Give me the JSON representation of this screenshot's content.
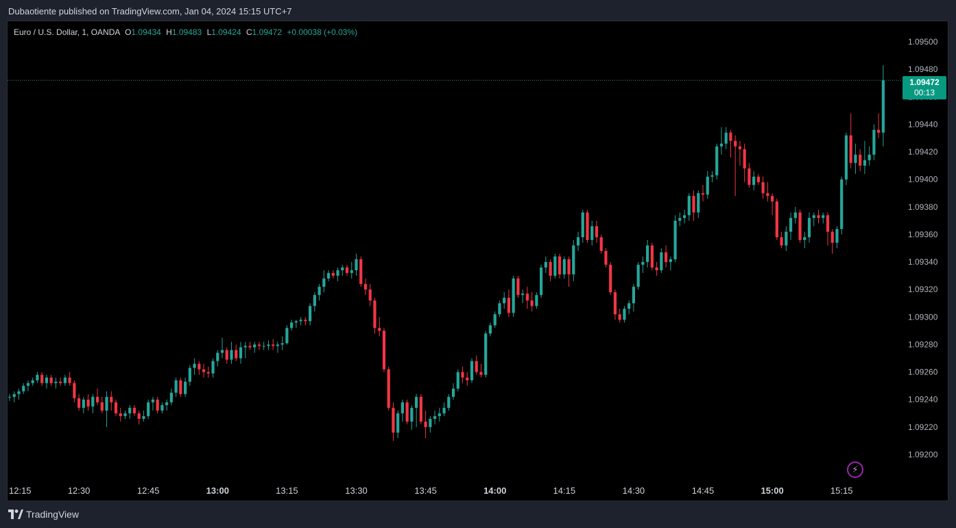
{
  "header": {
    "publish_text": "Dubaotiente published on TradingView.com, Jan 04, 2024 15:15 UTC+7"
  },
  "legend": {
    "symbol": "Euro / U.S. Dollar, 1, OANDA",
    "o_label": "O",
    "o_value": "1.09434",
    "h_label": "H",
    "h_value": "1.09483",
    "l_label": "L",
    "l_value": "1.09424",
    "c_label": "C",
    "c_value": "1.09472",
    "change": "+0.00038 (+0.03%)"
  },
  "last_price": {
    "price": "1.09472",
    "countdown": "00:13"
  },
  "footer": {
    "brand": "TradingView"
  },
  "colors": {
    "up": "#26a69a",
    "down": "#f23645",
    "badge": "#089981",
    "background": "#000000",
    "frame": "#1e222d"
  },
  "chart_data": {
    "type": "candlestick",
    "ylim": [
      1.0919,
      1.0951
    ],
    "y_ticks": [
      "1.09500",
      "1.09480",
      "1.09460",
      "1.09440",
      "1.09420",
      "1.09400",
      "1.09380",
      "1.09360",
      "1.09340",
      "1.09320",
      "1.09300",
      "1.09280",
      "1.09260",
      "1.09240",
      "1.09220",
      "1.09200"
    ],
    "x_ticks": [
      {
        "label": "12:15",
        "bold": false
      },
      {
        "label": "12:30",
        "bold": false
      },
      {
        "label": "12:45",
        "bold": false
      },
      {
        "label": "13:00",
        "bold": true
      },
      {
        "label": "13:15",
        "bold": false
      },
      {
        "label": "13:30",
        "bold": false
      },
      {
        "label": "13:45",
        "bold": false
      },
      {
        "label": "14:00",
        "bold": true
      },
      {
        "label": "14:15",
        "bold": false
      },
      {
        "label": "14:30",
        "bold": false
      },
      {
        "label": "14:45",
        "bold": false
      },
      {
        "label": "15:00",
        "bold": true
      },
      {
        "label": "15:15",
        "bold": false
      }
    ],
    "start_time": "12:15",
    "interval_minutes": 1,
    "candles": [
      [
        1.09242,
        1.09244,
        1.09239,
        1.09242
      ],
      [
        1.09242,
        1.09246,
        1.09238,
        1.09244
      ],
      [
        1.09244,
        1.09248,
        1.0924,
        1.09246
      ],
      [
        1.09246,
        1.09252,
        1.09244,
        1.0925
      ],
      [
        1.0925,
        1.09254,
        1.09246,
        1.09252
      ],
      [
        1.09252,
        1.09256,
        1.0925,
        1.09254
      ],
      [
        1.09254,
        1.0926,
        1.09252,
        1.09258
      ],
      [
        1.09258,
        1.0926,
        1.0925,
        1.09252
      ],
      [
        1.09252,
        1.09258,
        1.09248,
        1.09256
      ],
      [
        1.09256,
        1.09258,
        1.0925,
        1.09252
      ],
      [
        1.09252,
        1.09256,
        1.09248,
        1.09253
      ],
      [
        1.09253,
        1.09256,
        1.0925,
        1.09252
      ],
      [
        1.09252,
        1.09258,
        1.0925,
        1.09256
      ],
      [
        1.09256,
        1.0926,
        1.0925,
        1.09252
      ],
      [
        1.09252,
        1.09254,
        1.09238,
        1.09241
      ],
      [
        1.09241,
        1.09244,
        1.09232,
        1.09234
      ],
      [
        1.09234,
        1.09242,
        1.0923,
        1.0924
      ],
      [
        1.0924,
        1.09244,
        1.09232,
        1.09235
      ],
      [
        1.09235,
        1.09244,
        1.0923,
        1.09242
      ],
      [
        1.09242,
        1.09248,
        1.09236,
        1.09238
      ],
      [
        1.09238,
        1.09242,
        1.0923,
        1.09232
      ],
      [
        1.09232,
        1.09246,
        1.0922,
        1.09242
      ],
      [
        1.09242,
        1.09246,
        1.09232,
        1.09238
      ],
      [
        1.09238,
        1.0924,
        1.09228,
        1.0923
      ],
      [
        1.0923,
        1.09234,
        1.09224,
        1.09228
      ],
      [
        1.09228,
        1.09232,
        1.09226,
        1.0923
      ],
      [
        1.0923,
        1.09236,
        1.09226,
        1.09234
      ],
      [
        1.09234,
        1.09236,
        1.09228,
        1.0923
      ],
      [
        1.0923,
        1.09232,
        1.09222,
        1.09226
      ],
      [
        1.09226,
        1.09232,
        1.09224,
        1.09228
      ],
      [
        1.09228,
        1.0924,
        1.09226,
        1.09238
      ],
      [
        1.09238,
        1.09242,
        1.09232,
        1.0924
      ],
      [
        1.0924,
        1.09242,
        1.0923,
        1.09232
      ],
      [
        1.09232,
        1.09238,
        1.0923,
        1.09236
      ],
      [
        1.09236,
        1.0924,
        1.09232,
        1.09238
      ],
      [
        1.09238,
        1.09248,
        1.09236,
        1.09245
      ],
      [
        1.09245,
        1.09256,
        1.09242,
        1.09254
      ],
      [
        1.09254,
        1.09256,
        1.09242,
        1.09244
      ],
      [
        1.09244,
        1.09256,
        1.09242,
        1.09253
      ],
      [
        1.09253,
        1.09265,
        1.0925,
        1.09263
      ],
      [
        1.09263,
        1.0927,
        1.09258,
        1.09266
      ],
      [
        1.09266,
        1.09268,
        1.09258,
        1.09262
      ],
      [
        1.09262,
        1.09266,
        1.09256,
        1.0926
      ],
      [
        1.0926,
        1.09264,
        1.09256,
        1.09259
      ],
      [
        1.09259,
        1.0927,
        1.09256,
        1.09268
      ],
      [
        1.09268,
        1.09276,
        1.09264,
        1.09274
      ],
      [
        1.09274,
        1.09285,
        1.0927,
        1.09276
      ],
      [
        1.09276,
        1.09278,
        1.09266,
        1.09269
      ],
      [
        1.09269,
        1.09282,
        1.09266,
        1.09276
      ],
      [
        1.09276,
        1.0928,
        1.09268,
        1.0927
      ],
      [
        1.0927,
        1.09282,
        1.09266,
        1.09278
      ],
      [
        1.09278,
        1.09282,
        1.0927,
        1.09279
      ],
      [
        1.09279,
        1.09282,
        1.09276,
        1.09278
      ],
      [
        1.09278,
        1.09282,
        1.09274,
        1.0928
      ],
      [
        1.0928,
        1.09282,
        1.09276,
        1.09279
      ],
      [
        1.09279,
        1.09282,
        1.09276,
        1.09279
      ],
      [
        1.09279,
        1.09283,
        1.09276,
        1.0928
      ],
      [
        1.0928,
        1.09284,
        1.09276,
        1.09279
      ],
      [
        1.09279,
        1.09282,
        1.09274,
        1.0928
      ],
      [
        1.0928,
        1.09286,
        1.09276,
        1.09281
      ],
      [
        1.09281,
        1.09294,
        1.0928,
        1.09292
      ],
      [
        1.09292,
        1.09298,
        1.0929,
        1.09296
      ],
      [
        1.09296,
        1.09298,
        1.09292,
        1.09297
      ],
      [
        1.09297,
        1.093,
        1.09294,
        1.09298
      ],
      [
        1.09298,
        1.093,
        1.09294,
        1.09297
      ],
      [
        1.09297,
        1.0931,
        1.09294,
        1.09308
      ],
      [
        1.09308,
        1.09318,
        1.09304,
        1.09316
      ],
      [
        1.09316,
        1.09324,
        1.09312,
        1.09322
      ],
      [
        1.09322,
        1.09334,
        1.09318,
        1.09328
      ],
      [
        1.09328,
        1.09334,
        1.09326,
        1.09332
      ],
      [
        1.09332,
        1.09334,
        1.09328,
        1.0933
      ],
      [
        1.0933,
        1.09336,
        1.09326,
        1.09334
      ],
      [
        1.09334,
        1.09338,
        1.0933,
        1.09336
      ],
      [
        1.09336,
        1.09338,
        1.0933,
        1.09332
      ],
      [
        1.09332,
        1.0934,
        1.09328,
        1.09334
      ],
      [
        1.09334,
        1.09346,
        1.0933,
        1.09342
      ],
      [
        1.09342,
        1.09344,
        1.09322,
        1.09324
      ],
      [
        1.09324,
        1.09328,
        1.09316,
        1.0932
      ],
      [
        1.0932,
        1.09324,
        1.09308,
        1.09312
      ],
      [
        1.09312,
        1.09314,
        1.09288,
        1.09292
      ],
      [
        1.09292,
        1.093,
        1.09286,
        1.0929
      ],
      [
        1.0929,
        1.09292,
        1.0926,
        1.09262
      ],
      [
        1.09262,
        1.09264,
        1.09232,
        1.09234
      ],
      [
        1.09234,
        1.09238,
        1.0921,
        1.09216
      ],
      [
        1.09216,
        1.09232,
        1.09212,
        1.0923
      ],
      [
        1.0923,
        1.0924,
        1.09224,
        1.09238
      ],
      [
        1.09238,
        1.0924,
        1.09222,
        1.09224
      ],
      [
        1.09224,
        1.09236,
        1.09218,
        1.09234
      ],
      [
        1.09234,
        1.09244,
        1.0922,
        1.09242
      ],
      [
        1.09242,
        1.09244,
        1.09222,
        1.09224
      ],
      [
        1.09224,
        1.09232,
        1.09212,
        1.0922
      ],
      [
        1.0922,
        1.09228,
        1.09216,
        1.09226
      ],
      [
        1.09226,
        1.09232,
        1.09222,
        1.09228
      ],
      [
        1.09228,
        1.09234,
        1.09224,
        1.0923
      ],
      [
        1.0923,
        1.09238,
        1.09228,
        1.09234
      ],
      [
        1.09234,
        1.09244,
        1.09232,
        1.09242
      ],
      [
        1.09242,
        1.09252,
        1.0924,
        1.09248
      ],
      [
        1.09248,
        1.09262,
        1.09246,
        1.0926
      ],
      [
        1.0926,
        1.09264,
        1.09252,
        1.09256
      ],
      [
        1.09256,
        1.0926,
        1.0925,
        1.09254
      ],
      [
        1.09254,
        1.0927,
        1.09252,
        1.09268
      ],
      [
        1.09268,
        1.09272,
        1.09258,
        1.0926
      ],
      [
        1.0926,
        1.09266,
        1.09256,
        1.09258
      ],
      [
        1.09258,
        1.0929,
        1.09256,
        1.09288
      ],
      [
        1.09288,
        1.09296,
        1.09286,
        1.09294
      ],
      [
        1.09294,
        1.09304,
        1.09292,
        1.09302
      ],
      [
        1.09302,
        1.09312,
        1.093,
        1.0931
      ],
      [
        1.0931,
        1.09318,
        1.09306,
        1.09314
      ],
      [
        1.09314,
        1.0932,
        1.093,
        1.09303
      ],
      [
        1.09303,
        1.0933,
        1.093,
        1.09328
      ],
      [
        1.09328,
        1.0933,
        1.09314,
        1.09316
      ],
      [
        1.09316,
        1.0932,
        1.0931,
        1.09317
      ],
      [
        1.09317,
        1.09322,
        1.09306,
        1.09312
      ],
      [
        1.09312,
        1.09318,
        1.09304,
        1.09308
      ],
      [
        1.09308,
        1.09318,
        1.09306,
        1.09316
      ],
      [
        1.09316,
        1.09338,
        1.09314,
        1.09336
      ],
      [
        1.09336,
        1.09344,
        1.09332,
        1.0934
      ],
      [
        1.0934,
        1.09342,
        1.09326,
        1.0933
      ],
      [
        1.0933,
        1.09346,
        1.09328,
        1.09344
      ],
      [
        1.09344,
        1.09346,
        1.09328,
        1.09331
      ],
      [
        1.09331,
        1.09344,
        1.09328,
        1.09342
      ],
      [
        1.09342,
        1.09344,
        1.09322,
        1.09331
      ],
      [
        1.09331,
        1.09356,
        1.09326,
        1.09352
      ],
      [
        1.09352,
        1.09362,
        1.09348,
        1.09358
      ],
      [
        1.09358,
        1.09378,
        1.09354,
        1.09376
      ],
      [
        1.09376,
        1.09378,
        1.09354,
        1.09356
      ],
      [
        1.09356,
        1.0937,
        1.09352,
        1.09366
      ],
      [
        1.09366,
        1.0937,
        1.09354,
        1.09358
      ],
      [
        1.09358,
        1.0936,
        1.09346,
        1.09348
      ],
      [
        1.09348,
        1.0935,
        1.09336,
        1.09338
      ],
      [
        1.09338,
        1.0934,
        1.09316,
        1.09318
      ],
      [
        1.09318,
        1.0932,
        1.09298,
        1.09302
      ],
      [
        1.09302,
        1.09306,
        1.09296,
        1.09298
      ],
      [
        1.09298,
        1.09308,
        1.09296,
        1.09306
      ],
      [
        1.09306,
        1.09312,
        1.09302,
        1.0931
      ],
      [
        1.0931,
        1.09324,
        1.09304,
        1.09322
      ],
      [
        1.09322,
        1.0934,
        1.0932,
        1.09338
      ],
      [
        1.09338,
        1.09344,
        1.09332,
        1.0934
      ],
      [
        1.0934,
        1.09356,
        1.09336,
        1.09352
      ],
      [
        1.09352,
        1.09354,
        1.09334,
        1.09336
      ],
      [
        1.09336,
        1.0934,
        1.0933,
        1.09334
      ],
      [
        1.09334,
        1.0935,
        1.09332,
        1.09347
      ],
      [
        1.09347,
        1.09352,
        1.09336,
        1.0934
      ],
      [
        1.0934,
        1.09344,
        1.09334,
        1.09342
      ],
      [
        1.09342,
        1.09374,
        1.0934,
        1.0937
      ],
      [
        1.0937,
        1.09376,
        1.09366,
        1.09372
      ],
      [
        1.09372,
        1.09378,
        1.09368,
        1.09374
      ],
      [
        1.09374,
        1.0939,
        1.0937,
        1.09388
      ],
      [
        1.09388,
        1.09392,
        1.0937,
        1.09376
      ],
      [
        1.09376,
        1.09392,
        1.09372,
        1.0939
      ],
      [
        1.0939,
        1.09396,
        1.09384,
        1.09389
      ],
      [
        1.09389,
        1.09406,
        1.09386,
        1.09402
      ],
      [
        1.09402,
        1.09406,
        1.09398,
        1.09403
      ],
      [
        1.09403,
        1.09426,
        1.094,
        1.09424
      ],
      [
        1.09424,
        1.09438,
        1.09418,
        1.09426
      ],
      [
        1.09426,
        1.09438,
        1.09422,
        1.09434
      ],
      [
        1.09434,
        1.09436,
        1.09416,
        1.09428
      ],
      [
        1.09428,
        1.09432,
        1.09388,
        1.09424
      ],
      [
        1.09424,
        1.09428,
        1.0941,
        1.09422
      ],
      [
        1.09422,
        1.09426,
        1.09398,
        1.09408
      ],
      [
        1.09408,
        1.09412,
        1.09394,
        1.09396
      ],
      [
        1.09396,
        1.09406,
        1.09392,
        1.09402
      ],
      [
        1.09402,
        1.09404,
        1.09396,
        1.09398
      ],
      [
        1.09398,
        1.09402,
        1.09386,
        1.0939
      ],
      [
        1.0939,
        1.09398,
        1.09384,
        1.09388
      ],
      [
        1.09388,
        1.0939,
        1.09374,
        1.09384
      ],
      [
        1.09384,
        1.09386,
        1.09356,
        1.09358
      ],
      [
        1.09358,
        1.09362,
        1.0935,
        1.09352
      ],
      [
        1.09352,
        1.09366,
        1.09348,
        1.09362
      ],
      [
        1.09362,
        1.09376,
        1.09356,
        1.09372
      ],
      [
        1.09372,
        1.0938,
        1.09368,
        1.09376
      ],
      [
        1.09376,
        1.09378,
        1.09354,
        1.09356
      ],
      [
        1.09356,
        1.09362,
        1.0935,
        1.09358
      ],
      [
        1.09358,
        1.09376,
        1.09354,
        1.09372
      ],
      [
        1.09372,
        1.09376,
        1.09366,
        1.09374
      ],
      [
        1.09374,
        1.09378,
        1.09368,
        1.09372
      ],
      [
        1.09372,
        1.09376,
        1.09368,
        1.09374
      ],
      [
        1.09374,
        1.09376,
        1.09352,
        1.09362
      ],
      [
        1.09362,
        1.09364,
        1.09346,
        1.09354
      ],
      [
        1.09354,
        1.09366,
        1.0935,
        1.09364
      ],
      [
        1.09364,
        1.09402,
        1.0936,
        1.094
      ],
      [
        1.094,
        1.09434,
        1.09396,
        1.09432
      ],
      [
        1.09432,
        1.09448,
        1.09408,
        1.09412
      ],
      [
        1.09412,
        1.09426,
        1.09404,
        1.09418
      ],
      [
        1.09418,
        1.09422,
        1.09406,
        1.0941
      ],
      [
        1.0941,
        1.09428,
        1.09404,
        1.09414
      ],
      [
        1.09414,
        1.09424,
        1.0941,
        1.09418
      ],
      [
        1.09418,
        1.0944,
        1.09414,
        1.09436
      ],
      [
        1.09436,
        1.09448,
        1.0943,
        1.09434
      ],
      [
        1.09434,
        1.09483,
        1.09424,
        1.09472
      ]
    ]
  }
}
